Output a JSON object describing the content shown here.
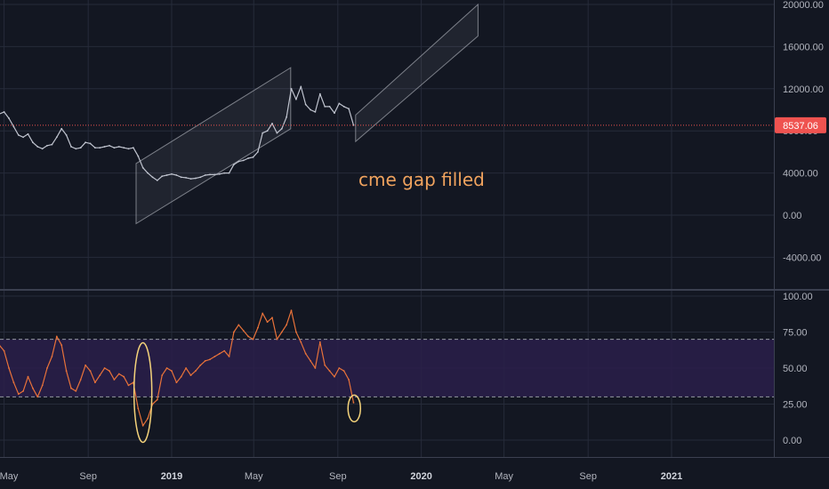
{
  "colors": {
    "background": "#131722",
    "grid": "#262b3a",
    "separator": "#3b4050",
    "price_line": "#c0c4cf",
    "last_price": "#ef5350",
    "channel_stroke": "#9598a1",
    "rsi_line": "#e8723a",
    "rsi_band": "#2a1f4a",
    "annotation": "#f0a35e",
    "ellipse": "#f3d27a"
  },
  "chart_data": [
    {
      "type": "line",
      "title": "",
      "xlabel": "",
      "ylabel": "",
      "x_ticks": [
        "May",
        "Sep",
        "2019",
        "May",
        "Sep",
        "2020",
        "May",
        "Sep",
        "2021"
      ],
      "y_ticks": [
        "20000.00",
        "16000.00",
        "12000.00",
        "8000.00",
        "4000.00",
        "0.00",
        "-4000.00"
      ],
      "ylim": [
        -6200,
        20500
      ],
      "grid": true,
      "series": [
        {
          "x": [
            "2018-04-24",
            "2018-05-01",
            "2018-05-08",
            "2018-05-15",
            "2018-05-22",
            "2018-05-29",
            "2018-06-05",
            "2018-06-12",
            "2018-06-19",
            "2018-06-26",
            "2018-07-03",
            "2018-07-10",
            "2018-07-17",
            "2018-07-24",
            "2018-07-31",
            "2018-08-07",
            "2018-08-14",
            "2018-08-21",
            "2018-08-28",
            "2018-09-04",
            "2018-09-11",
            "2018-09-18",
            "2018-09-25",
            "2018-10-02",
            "2018-10-09",
            "2018-10-16",
            "2018-10-23",
            "2018-10-30",
            "2018-11-06",
            "2018-11-13",
            "2018-11-20",
            "2018-11-27",
            "2018-12-04",
            "2018-12-11",
            "2018-12-18",
            "2018-12-25",
            "2019-01-01",
            "2019-01-08",
            "2019-01-15",
            "2019-01-22",
            "2019-01-29",
            "2019-02-05",
            "2019-02-12",
            "2019-02-19",
            "2019-02-26",
            "2019-03-05",
            "2019-03-12",
            "2019-03-19",
            "2019-03-26",
            "2019-04-02",
            "2019-04-09",
            "2019-04-16",
            "2019-04-23",
            "2019-04-30",
            "2019-05-07",
            "2019-05-14",
            "2019-05-21",
            "2019-05-28",
            "2019-06-04",
            "2019-06-11",
            "2019-06-18",
            "2019-06-25",
            "2019-07-02",
            "2019-07-09",
            "2019-07-16",
            "2019-07-23",
            "2019-07-30",
            "2019-08-06",
            "2019-08-13",
            "2019-08-20",
            "2019-08-27",
            "2019-09-03",
            "2019-09-10",
            "2019-09-17",
            "2019-09-24"
          ],
          "values": [
            9600,
            9800,
            9200,
            8400,
            7600,
            7400,
            7700,
            6900,
            6500,
            6300,
            6600,
            6700,
            7400,
            8200,
            7600,
            6500,
            6300,
            6400,
            6900,
            6800,
            6400,
            6400,
            6500,
            6600,
            6400,
            6500,
            6400,
            6300,
            6400,
            5600,
            4500,
            4000,
            3600,
            3300,
            3700,
            3800,
            3900,
            3800,
            3600,
            3550,
            3450,
            3500,
            3600,
            3800,
            3850,
            3850,
            3900,
            4000,
            4000,
            4800,
            5100,
            5200,
            5400,
            5500,
            6000,
            7800,
            8000,
            8700,
            7800,
            8200,
            9300,
            12000,
            11000,
            12200,
            10500,
            10000,
            9800,
            11500,
            10300,
            10300,
            9700,
            10600,
            10300,
            10100,
            8537
          ]
        }
      ],
      "channels": [
        {
          "upper": [
            [
              "2018-11-10",
              4900
            ],
            [
              "2019-06-24",
              14000
            ]
          ],
          "lower": [
            [
              "2018-11-10",
              -800
            ],
            [
              "2019-06-24",
              8200
            ]
          ]
        },
        {
          "upper": [
            [
              "2019-09-27",
              9500
            ],
            [
              "2020-03-24",
              20000
            ]
          ],
          "lower": [
            [
              "2019-09-27",
              7000
            ],
            [
              "2020-03-24",
              17000
            ]
          ]
        }
      ],
      "last_price_label": "8537.06",
      "annotation": "cme gap filled"
    },
    {
      "type": "line",
      "title": "",
      "y_ticks": [
        "100.00",
        "75.00",
        "50.00",
        "25.00",
        "0.00"
      ],
      "ylim": [
        -7,
        101
      ],
      "grid": true,
      "band": [
        30,
        70
      ],
      "series": [
        {
          "x": [
            "2018-04-24",
            "2018-05-01",
            "2018-05-08",
            "2018-05-15",
            "2018-05-22",
            "2018-05-29",
            "2018-06-05",
            "2018-06-12",
            "2018-06-19",
            "2018-06-26",
            "2018-07-03",
            "2018-07-10",
            "2018-07-17",
            "2018-07-24",
            "2018-07-31",
            "2018-08-07",
            "2018-08-14",
            "2018-08-21",
            "2018-08-28",
            "2018-09-04",
            "2018-09-11",
            "2018-09-18",
            "2018-09-25",
            "2018-10-02",
            "2018-10-09",
            "2018-10-16",
            "2018-10-23",
            "2018-10-30",
            "2018-11-06",
            "2018-11-13",
            "2018-11-20",
            "2018-11-27",
            "2018-12-04",
            "2018-12-11",
            "2018-12-18",
            "2018-12-25",
            "2019-01-01",
            "2019-01-08",
            "2019-01-15",
            "2019-01-22",
            "2019-01-29",
            "2019-02-05",
            "2019-02-12",
            "2019-02-19",
            "2019-02-26",
            "2019-03-05",
            "2019-03-12",
            "2019-03-19",
            "2019-03-26",
            "2019-04-02",
            "2019-04-09",
            "2019-04-16",
            "2019-04-23",
            "2019-04-30",
            "2019-05-07",
            "2019-05-14",
            "2019-05-21",
            "2019-05-28",
            "2019-06-04",
            "2019-06-11",
            "2019-06-18",
            "2019-06-25",
            "2019-07-02",
            "2019-07-09",
            "2019-07-16",
            "2019-07-23",
            "2019-07-30",
            "2019-08-06",
            "2019-08-13",
            "2019-08-20",
            "2019-08-27",
            "2019-09-03",
            "2019-09-10",
            "2019-09-17",
            "2019-09-24"
          ],
          "values": [
            66,
            62,
            50,
            40,
            32,
            34,
            44,
            36,
            30,
            38,
            50,
            58,
            72,
            66,
            48,
            36,
            34,
            42,
            52,
            48,
            40,
            45,
            50,
            48,
            42,
            46,
            44,
            38,
            40,
            22,
            10,
            15,
            25,
            28,
            45,
            50,
            48,
            40,
            44,
            50,
            45,
            48,
            52,
            55,
            56,
            58,
            60,
            62,
            58,
            75,
            80,
            76,
            72,
            70,
            78,
            88,
            82,
            85,
            70,
            75,
            80,
            90,
            75,
            68,
            60,
            55,
            50,
            68,
            52,
            48,
            44,
            50,
            48,
            42,
            26
          ]
        }
      ]
    }
  ]
}
